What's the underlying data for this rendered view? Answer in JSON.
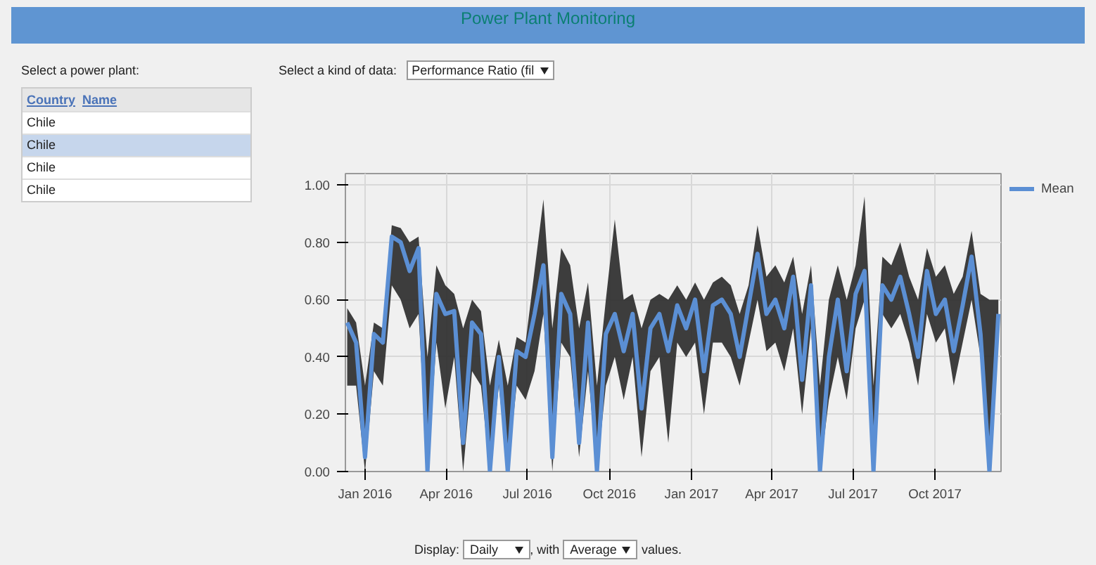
{
  "chart_data": {
    "type": "line",
    "title": "Power Plant Monitoring",
    "annotations": [
      "Select a power plant:",
      "Country",
      "Name",
      "Chile",
      "Chile",
      "Chile",
      "Chile",
      "Select a kind of data:",
      "Performance Ratio (fil",
      "Display:",
      "Daily",
      ", with",
      "Average",
      "values."
    ],
    "x": [
      "2015-12-12",
      "2015-12-22",
      "2016-01-01",
      "2016-01-11",
      "2016-01-21",
      "2016-01-31",
      "2016-02-10",
      "2016-02-20",
      "2016-03-01",
      "2016-03-11",
      "2016-03-21",
      "2016-03-31",
      "2016-04-10",
      "2016-04-20",
      "2016-04-30",
      "2016-05-10",
      "2016-05-20",
      "2016-05-30",
      "2016-06-09",
      "2016-06-19",
      "2016-06-29",
      "2016-07-09",
      "2016-07-19",
      "2016-07-29",
      "2016-08-08",
      "2016-08-18",
      "2016-08-28",
      "2016-09-07",
      "2016-09-17",
      "2016-09-27",
      "2016-10-07",
      "2016-10-17",
      "2016-10-27",
      "2016-11-06",
      "2016-11-16",
      "2016-11-26",
      "2016-12-06",
      "2016-12-16",
      "2016-12-26",
      "2017-01-05",
      "2017-01-15",
      "2017-01-25",
      "2017-02-04",
      "2017-02-14",
      "2017-02-24",
      "2017-03-06",
      "2017-03-16",
      "2017-03-26",
      "2017-04-05",
      "2017-04-15",
      "2017-04-25",
      "2017-05-05",
      "2017-05-15",
      "2017-05-25",
      "2017-06-04",
      "2017-06-14",
      "2017-06-24",
      "2017-07-04",
      "2017-07-14",
      "2017-07-24",
      "2017-08-03",
      "2017-08-13",
      "2017-08-23",
      "2017-09-02",
      "2017-09-12",
      "2017-09-22",
      "2017-10-02",
      "2017-10-12",
      "2017-10-22",
      "2017-11-01",
      "2017-11-11",
      "2017-11-21",
      "2017-12-01",
      "2017-12-11"
    ],
    "series": [
      {
        "name": "Mean",
        "color": "#5b8fd4",
        "values": [
          0.52,
          0.45,
          0.05,
          0.48,
          0.45,
          0.82,
          0.8,
          0.7,
          0.78,
          0.0,
          0.62,
          0.55,
          0.56,
          0.1,
          0.52,
          0.48,
          0.0,
          0.4,
          0.0,
          0.42,
          0.4,
          0.55,
          0.72,
          0.05,
          0.62,
          0.55,
          0.1,
          0.52,
          0.0,
          0.48,
          0.55,
          0.42,
          0.55,
          0.22,
          0.5,
          0.55,
          0.42,
          0.58,
          0.5,
          0.6,
          0.35,
          0.58,
          0.6,
          0.55,
          0.4,
          0.58,
          0.76,
          0.55,
          0.6,
          0.5,
          0.68,
          0.32,
          0.65,
          0.0,
          0.4,
          0.6,
          0.35,
          0.62,
          0.7,
          0.0,
          0.65,
          0.6,
          0.68,
          0.55,
          0.4,
          0.7,
          0.55,
          0.6,
          0.42,
          0.58,
          0.75,
          0.48,
          0.0,
          0.55
        ],
        "lower": [
          0.3,
          0.3,
          0.0,
          0.35,
          0.3,
          0.65,
          0.6,
          0.5,
          0.55,
          0.0,
          0.45,
          0.22,
          0.4,
          0.0,
          0.35,
          0.3,
          0.0,
          0.3,
          0.0,
          0.3,
          0.25,
          0.35,
          0.55,
          0.0,
          0.45,
          0.4,
          0.05,
          0.35,
          0.0,
          0.3,
          0.4,
          0.25,
          0.4,
          0.05,
          0.35,
          0.4,
          0.1,
          0.45,
          0.4,
          0.45,
          0.2,
          0.45,
          0.45,
          0.4,
          0.3,
          0.45,
          0.6,
          0.42,
          0.45,
          0.35,
          0.5,
          0.2,
          0.5,
          0.0,
          0.25,
          0.4,
          0.25,
          0.5,
          0.6,
          0.0,
          0.55,
          0.5,
          0.55,
          0.45,
          0.3,
          0.55,
          0.45,
          0.5,
          0.3,
          0.45,
          0.6,
          0.4,
          0.0,
          0.5
        ],
        "upper": [
          0.57,
          0.52,
          0.3,
          0.52,
          0.5,
          0.86,
          0.85,
          0.8,
          0.82,
          0.4,
          0.72,
          0.65,
          0.62,
          0.5,
          0.6,
          0.56,
          0.3,
          0.46,
          0.3,
          0.47,
          0.45,
          0.7,
          0.95,
          0.5,
          0.78,
          0.72,
          0.5,
          0.66,
          0.3,
          0.6,
          0.88,
          0.6,
          0.62,
          0.5,
          0.6,
          0.62,
          0.6,
          0.65,
          0.6,
          0.66,
          0.6,
          0.66,
          0.68,
          0.65,
          0.55,
          0.65,
          0.86,
          0.68,
          0.72,
          0.66,
          0.75,
          0.55,
          0.72,
          0.3,
          0.6,
          0.72,
          0.6,
          0.72,
          0.96,
          0.3,
          0.75,
          0.72,
          0.8,
          0.68,
          0.6,
          0.78,
          0.68,
          0.72,
          0.62,
          0.68,
          0.84,
          0.62,
          0.6,
          0.6
        ]
      }
    ],
    "xlim": [
      "2015-12-10",
      "2017-12-14"
    ],
    "xticks": [
      {
        "value": "2016-01-01",
        "label": "Jan 2016"
      },
      {
        "value": "2016-04-01",
        "label": "Apr 2016"
      },
      {
        "value": "2016-07-01",
        "label": "Jul 2016"
      },
      {
        "value": "2016-10-01",
        "label": "Oct 2016"
      },
      {
        "value": "2017-01-01",
        "label": "Jan 2017"
      },
      {
        "value": "2017-04-01",
        "label": "Apr 2017"
      },
      {
        "value": "2017-07-01",
        "label": "Jul 2017"
      },
      {
        "value": "2017-10-01",
        "label": "Oct 2017"
      }
    ],
    "ylim": [
      0,
      1.04
    ],
    "yticks": [
      {
        "value": 0,
        "label": "0.00"
      },
      {
        "value": 0.2,
        "label": "0.20"
      },
      {
        "value": 0.4,
        "label": "0.40"
      },
      {
        "value": 0.6,
        "label": "0.60"
      },
      {
        "value": 0.8,
        "label": "0.80"
      },
      {
        "value": 1.0,
        "label": "1.00"
      }
    ],
    "grid": true,
    "legend": "top right",
    "line_style": "solid",
    "marker": "none"
  }
}
